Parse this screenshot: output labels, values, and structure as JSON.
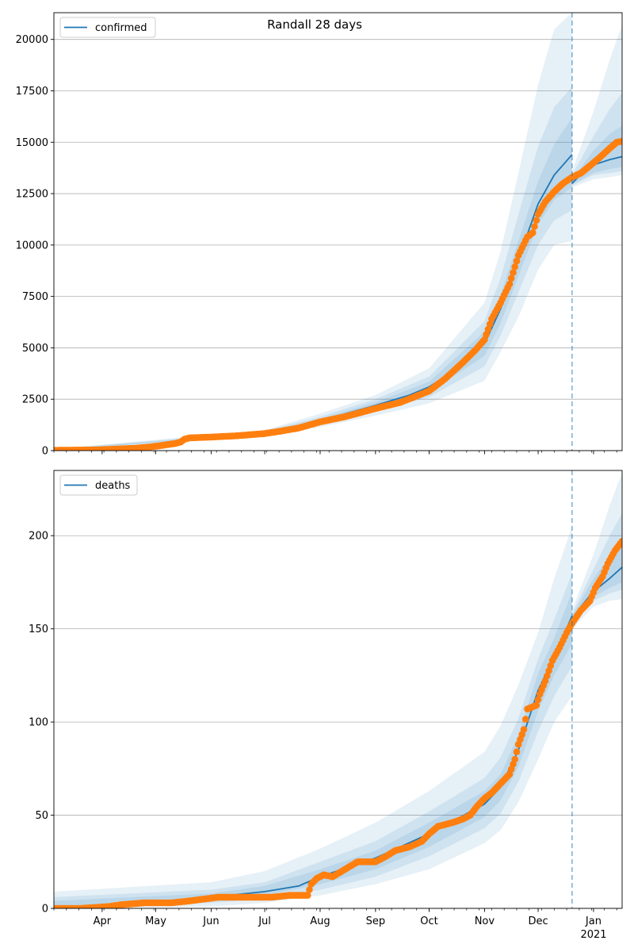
{
  "figure": {
    "title": "Randall 28 days"
  },
  "chart_data": [
    {
      "type": "line",
      "series_name": "confirmed",
      "legend_label": "confirmed",
      "legend_location": "upper-left",
      "ylim": [
        0,
        21300
      ],
      "yticks": [
        0,
        2500,
        5000,
        7500,
        10000,
        12500,
        15000,
        17500,
        20000
      ],
      "ytick_labels": [
        "0",
        "2500",
        "5000",
        "7500",
        "10000",
        "12500",
        "15000",
        "17500",
        "20000"
      ],
      "grid": "horizontal",
      "forecast_start": "2020-12-20",
      "model_line": [
        [
          "2020-03-05",
          30
        ],
        [
          "2020-04-01",
          50
        ],
        [
          "2020-05-01",
          200
        ],
        [
          "2020-05-15",
          520
        ],
        [
          "2020-06-01",
          650
        ],
        [
          "2020-07-01",
          850
        ],
        [
          "2020-08-01",
          1450
        ],
        [
          "2020-09-01",
          2200
        ],
        [
          "2020-09-20",
          2700
        ],
        [
          "2020-10-01",
          3100
        ],
        [
          "2020-10-15",
          3900
        ],
        [
          "2020-11-01",
          5200
        ],
        [
          "2020-11-10",
          6900
        ],
        [
          "2020-11-20",
          9300
        ],
        [
          "2020-12-01",
          12000
        ],
        [
          "2020-12-10",
          13400
        ],
        [
          "2020-12-20",
          14400
        ]
      ],
      "model_line_forecast": [
        [
          "2020-12-20",
          13000
        ],
        [
          "2020-12-25",
          13450
        ],
        [
          "2021-01-01",
          13900
        ],
        [
          "2021-01-10",
          14150
        ],
        [
          "2021-01-17",
          14300
        ]
      ],
      "bands": [
        {
          "dates": [
            "2020-03-05",
            "2020-07-01",
            "2020-08-01",
            "2020-09-01",
            "2020-10-01",
            "2020-11-01",
            "2020-11-10",
            "2020-11-20",
            "2020-12-01",
            "2020-12-10",
            "2020-12-20"
          ],
          "lower": [
            0,
            700,
            1150,
            1700,
            2300,
            3400,
            4800,
            6500,
            8800,
            10000,
            10200
          ],
          "upper": [
            80,
            1000,
            1800,
            2700,
            4000,
            7200,
            9700,
            13500,
            17800,
            20500,
            21300
          ]
        },
        {
          "dates": [
            "2020-03-05",
            "2020-07-01",
            "2020-08-01",
            "2020-09-01",
            "2020-10-01",
            "2020-11-01",
            "2020-11-10",
            "2020-11-20",
            "2020-12-01",
            "2020-12-10",
            "2020-12-20"
          ],
          "lower": [
            10,
            750,
            1250,
            1900,
            2600,
            4100,
            5600,
            7700,
            10000,
            11200,
            11700
          ],
          "upper": [
            60,
            950,
            1650,
            2500,
            3600,
            6300,
            8400,
            11500,
            14800,
            16700,
            17700
          ]
        },
        {
          "dates": [
            "2020-03-05",
            "2020-07-01",
            "2020-08-01",
            "2020-09-01",
            "2020-10-01",
            "2020-11-01",
            "2020-11-10",
            "2020-11-20",
            "2020-12-01",
            "2020-12-10",
            "2020-12-20"
          ],
          "lower": [
            20,
            800,
            1350,
            2050,
            2850,
            4600,
            6200,
            8500,
            11000,
            12200,
            12800
          ],
          "upper": [
            45,
            900,
            1550,
            2350,
            3350,
            5800,
            7600,
            10200,
            13100,
            14900,
            16200
          ]
        }
      ],
      "bands_forecast": [
        {
          "dates": [
            "2020-12-20",
            "2021-01-01",
            "2021-01-10",
            "2021-01-17"
          ],
          "lower": [
            12800,
            13200,
            13300,
            13400
          ],
          "upper": [
            13600,
            16500,
            19000,
            20700
          ]
        },
        {
          "dates": [
            "2020-12-20",
            "2021-01-01",
            "2021-01-10",
            "2021-01-17"
          ],
          "lower": [
            12900,
            13400,
            13500,
            13600
          ],
          "upper": [
            13400,
            15300,
            16600,
            17400
          ]
        },
        {
          "dates": [
            "2020-12-20",
            "2021-01-01",
            "2021-01-10",
            "2021-01-17"
          ],
          "lower": [
            12950,
            13500,
            13700,
            13800
          ],
          "upper": [
            13200,
            14600,
            15400,
            15800
          ]
        }
      ],
      "observed_points": [
        [
          "2020-03-05",
          20
        ],
        [
          "2020-03-15",
          25
        ],
        [
          "2020-03-25",
          30
        ],
        [
          "2020-04-01",
          45
        ],
        [
          "2020-04-10",
          80
        ],
        [
          "2020-04-20",
          120
        ],
        [
          "2020-04-28",
          180
        ],
        [
          "2020-05-05",
          260
        ],
        [
          "2020-05-12",
          350
        ],
        [
          "2020-05-15",
          420
        ],
        [
          "2020-05-17",
          550
        ],
        [
          "2020-05-20",
          620
        ],
        [
          "2020-06-01",
          660
        ],
        [
          "2020-06-15",
          720
        ],
        [
          "2020-07-01",
          830
        ],
        [
          "2020-07-10",
          950
        ],
        [
          "2020-07-20",
          1100
        ],
        [
          "2020-08-01",
          1400
        ],
        [
          "2020-08-15",
          1650
        ],
        [
          "2020-09-01",
          2050
        ],
        [
          "2020-09-15",
          2350
        ],
        [
          "2020-10-01",
          2900
        ],
        [
          "2020-10-10",
          3500
        ],
        [
          "2020-10-20",
          4300
        ],
        [
          "2020-10-27",
          4900
        ],
        [
          "2020-11-01",
          5400
        ],
        [
          "2020-11-05",
          6400
        ],
        [
          "2020-11-10",
          7200
        ],
        [
          "2020-11-15",
          8100
        ],
        [
          "2020-11-20",
          9500
        ],
        [
          "2020-11-25",
          10400
        ],
        [
          "2020-11-28",
          10600
        ],
        [
          "2020-12-01",
          11500
        ],
        [
          "2020-12-05",
          12100
        ],
        [
          "2020-12-10",
          12600
        ],
        [
          "2020-12-15",
          13000
        ],
        [
          "2020-12-20",
          13300
        ],
        [
          "2020-12-25",
          13500
        ],
        [
          "2021-01-01",
          14000
        ],
        [
          "2021-01-05",
          14300
        ],
        [
          "2021-01-10",
          14700
        ],
        [
          "2021-01-14",
          15000
        ],
        [
          "2021-01-17",
          15050
        ]
      ]
    },
    {
      "type": "line",
      "series_name": "deaths",
      "legend_label": "deaths",
      "legend_location": "upper-left",
      "ylim": [
        0,
        235
      ],
      "yticks": [
        0,
        50,
        100,
        150,
        200
      ],
      "ytick_labels": [
        "0",
        "50",
        "100",
        "150",
        "200"
      ],
      "grid": "horizontal",
      "forecast_start": "2020-12-20",
      "model_line": [
        [
          "2020-03-05",
          0
        ],
        [
          "2020-04-01",
          1
        ],
        [
          "2020-05-01",
          3
        ],
        [
          "2020-06-01",
          6
        ],
        [
          "2020-07-01",
          9
        ],
        [
          "2020-07-20",
          12
        ],
        [
          "2020-08-01",
          17
        ],
        [
          "2020-09-01",
          27
        ],
        [
          "2020-10-01",
          40
        ],
        [
          "2020-11-01",
          56
        ],
        [
          "2020-11-10",
          65
        ],
        [
          "2020-11-20",
          85
        ],
        [
          "2020-12-01",
          117
        ],
        [
          "2020-12-10",
          135
        ],
        [
          "2020-12-20",
          157
        ]
      ],
      "model_line_forecast": [
        [
          "2020-12-20",
          155
        ],
        [
          "2020-12-25",
          162
        ],
        [
          "2021-01-01",
          170
        ],
        [
          "2021-01-10",
          177
        ],
        [
          "2021-01-17",
          183
        ]
      ],
      "bands": [
        {
          "dates": [
            "2020-03-05",
            "2020-06-01",
            "2020-07-01",
            "2020-08-01",
            "2020-09-01",
            "2020-10-01",
            "2020-11-01",
            "2020-11-10",
            "2020-11-20",
            "2020-12-01",
            "2020-12-10",
            "2020-12-20"
          ],
          "lower": [
            0,
            1,
            3,
            7,
            13,
            21,
            35,
            42,
            57,
            80,
            100,
            114
          ],
          "upper": [
            9,
            14,
            20,
            32,
            46,
            63,
            84,
            98,
            120,
            148,
            177,
            205
          ]
        },
        {
          "dates": [
            "2020-03-05",
            "2020-06-01",
            "2020-07-01",
            "2020-08-01",
            "2020-09-01",
            "2020-10-01",
            "2020-11-01",
            "2020-11-10",
            "2020-11-20",
            "2020-12-01",
            "2020-12-10",
            "2020-12-20"
          ],
          "lower": [
            0,
            3,
            5,
            10,
            17,
            28,
            43,
            51,
            68,
            95,
            114,
            130
          ],
          "upper": [
            6,
            10,
            14,
            25,
            36,
            52,
            70,
            81,
            102,
            134,
            155,
            180
          ]
        },
        {
          "dates": [
            "2020-03-05",
            "2020-06-01",
            "2020-07-01",
            "2020-08-01",
            "2020-09-01",
            "2020-10-01",
            "2020-11-01",
            "2020-11-10",
            "2020-11-20",
            "2020-12-01",
            "2020-12-10",
            "2020-12-20"
          ],
          "lower": [
            0,
            4,
            7,
            13,
            21,
            33,
            49,
            58,
            76,
            106,
            125,
            142
          ],
          "upper": [
            4,
            8,
            12,
            21,
            31,
            46,
            63,
            72,
            93,
            126,
            145,
            170
          ]
        }
      ],
      "bands_forecast": [
        {
          "dates": [
            "2020-12-20",
            "2021-01-01",
            "2021-01-10",
            "2021-01-17"
          ],
          "lower": [
            150,
            162,
            165,
            166
          ],
          "upper": [
            160,
            190,
            216,
            234
          ]
        },
        {
          "dates": [
            "2020-12-20",
            "2021-01-01",
            "2021-01-10",
            "2021-01-17"
          ],
          "lower": [
            152,
            165,
            169,
            171
          ],
          "upper": [
            158,
            182,
            200,
            212
          ]
        },
        {
          "dates": [
            "2020-12-20",
            "2021-01-01",
            "2021-01-10",
            "2021-01-17"
          ],
          "lower": [
            153,
            167,
            172,
            175
          ],
          "upper": [
            157,
            177,
            189,
            197
          ]
        }
      ],
      "observed_points": [
        [
          "2020-03-05",
          0
        ],
        [
          "2020-03-20",
          0
        ],
        [
          "2020-04-05",
          1
        ],
        [
          "2020-04-12",
          2
        ],
        [
          "2020-04-25",
          3
        ],
        [
          "2020-05-10",
          3
        ],
        [
          "2020-05-20",
          4
        ],
        [
          "2020-05-28",
          5
        ],
        [
          "2020-06-05",
          6
        ],
        [
          "2020-06-15",
          6
        ],
        [
          "2020-06-25",
          6
        ],
        [
          "2020-07-05",
          6
        ],
        [
          "2020-07-15",
          7
        ],
        [
          "2020-07-25",
          7
        ],
        [
          "2020-07-27",
          13
        ],
        [
          "2020-07-30",
          16
        ],
        [
          "2020-08-03",
          18
        ],
        [
          "2020-08-08",
          17
        ],
        [
          "2020-08-15",
          21
        ],
        [
          "2020-08-22",
          25
        ],
        [
          "2020-09-01",
          25
        ],
        [
          "2020-09-07",
          28
        ],
        [
          "2020-09-12",
          31
        ],
        [
          "2020-09-20",
          33
        ],
        [
          "2020-09-27",
          36
        ],
        [
          "2020-10-01",
          40
        ],
        [
          "2020-10-06",
          44
        ],
        [
          "2020-10-14",
          46
        ],
        [
          "2020-10-20",
          48
        ],
        [
          "2020-10-24",
          50
        ],
        [
          "2020-10-28",
          55
        ],
        [
          "2020-11-01",
          59
        ],
        [
          "2020-11-05",
          62
        ],
        [
          "2020-11-10",
          67
        ],
        [
          "2020-11-15",
          72
        ],
        [
          "2020-11-18",
          80
        ],
        [
          "2020-11-20",
          88
        ],
        [
          "2020-11-23",
          96
        ],
        [
          "2020-11-25",
          107
        ],
        [
          "2020-11-30",
          109
        ],
        [
          "2020-12-02",
          115
        ],
        [
          "2020-12-05",
          122
        ],
        [
          "2020-12-09",
          133
        ],
        [
          "2020-12-13",
          140
        ],
        [
          "2020-12-17",
          148
        ],
        [
          "2020-12-20",
          153
        ],
        [
          "2020-12-25",
          160
        ],
        [
          "2020-12-30",
          165
        ],
        [
          "2021-01-02",
          172
        ],
        [
          "2021-01-06",
          178
        ],
        [
          "2021-01-09",
          185
        ],
        [
          "2021-01-13",
          192
        ],
        [
          "2021-01-17",
          197
        ]
      ]
    }
  ],
  "x_axis": {
    "months": [
      {
        "date": "2020-04-01",
        "label": "Apr"
      },
      {
        "date": "2020-05-01",
        "label": "May"
      },
      {
        "date": "2020-06-01",
        "label": "Jun"
      },
      {
        "date": "2020-07-01",
        "label": "Jul"
      },
      {
        "date": "2020-08-01",
        "label": "Aug"
      },
      {
        "date": "2020-09-01",
        "label": "Sep"
      },
      {
        "date": "2020-10-01",
        "label": "Oct"
      },
      {
        "date": "2020-11-01",
        "label": "Nov"
      },
      {
        "date": "2020-12-01",
        "label": "Dec"
      },
      {
        "date": "2021-01-01",
        "label": "Jan"
      }
    ],
    "year_label": "2021",
    "xlim": [
      "2020-03-05",
      "2021-01-17"
    ]
  },
  "colors": {
    "line": "#1f77b4",
    "points": "#ff7f0e",
    "band": "#1f77b4",
    "grid": "#b0b0b0",
    "forecast_line": "#1f77b4"
  }
}
